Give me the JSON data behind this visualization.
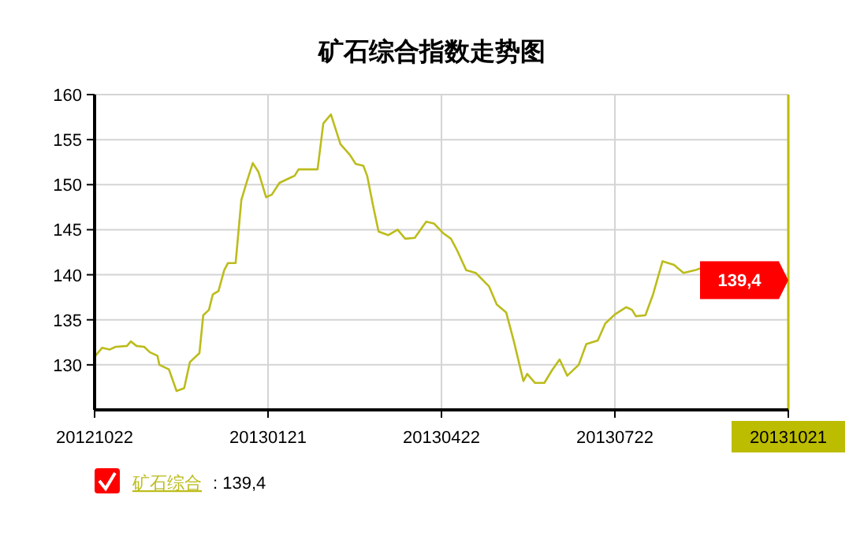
{
  "chart_data": {
    "type": "line",
    "title": "矿石综合指数走势图",
    "x": [
      "2012-10-22",
      "2012-10-26",
      "2012-10-30",
      "2012-11-02",
      "2012-11-08",
      "2012-11-10",
      "2012-11-13",
      "2012-11-17",
      "2012-11-20",
      "2012-11-24",
      "2012-11-25",
      "2012-11-30",
      "2012-12-04",
      "2012-12-08",
      "2012-12-11",
      "2012-12-16",
      "2012-12-18",
      "2012-12-21",
      "2012-12-23",
      "2012-12-26",
      "2012-12-29",
      "2012-12-31",
      "2013-01-04",
      "2013-01-07",
      "2013-01-10",
      "2013-01-13",
      "2013-01-16",
      "2013-01-20",
      "2013-01-23",
      "2013-01-27",
      "2013-02-01",
      "2013-02-04",
      "2013-02-06",
      "2013-02-16",
      "2013-02-19",
      "2013-02-23",
      "2013-02-28",
      "2013-03-05",
      "2013-03-08",
      "2013-03-12",
      "2013-03-14",
      "2013-03-17",
      "2013-03-20",
      "2013-03-25",
      "2013-03-30",
      "2013-04-03",
      "2013-04-08",
      "2013-04-14",
      "2013-04-18",
      "2013-04-23",
      "2013-04-27",
      "2013-04-30",
      "2013-05-05",
      "2013-05-10",
      "2013-05-17",
      "2013-05-21",
      "2013-05-26",
      "2013-05-30",
      "2013-06-04",
      "2013-06-06",
      "2013-06-10",
      "2013-06-15",
      "2013-06-19",
      "2013-06-23",
      "2013-06-27",
      "2013-07-03",
      "2013-07-07",
      "2013-07-13",
      "2013-07-17",
      "2013-07-22",
      "2013-07-28",
      "2013-07-31",
      "2013-08-02",
      "2013-08-07",
      "2013-08-11",
      "2013-08-16",
      "2013-08-22",
      "2013-08-27",
      "2013-09-02",
      "2013-09-06"
    ],
    "series": [
      {
        "name": "矿石综合",
        "color": "#bcbc1c",
        "values": [
          130.9,
          131.9,
          131.7,
          132.0,
          132.1,
          132.6,
          132.1,
          132.0,
          131.4,
          131.0,
          130.0,
          129.5,
          127.1,
          127.4,
          130.3,
          131.3,
          135.5,
          136.1,
          137.8,
          138.2,
          140.5,
          141.3,
          141.3,
          148.3,
          150.4,
          152.4,
          151.4,
          148.6,
          148.9,
          150.2,
          150.7,
          151.0,
          151.7,
          151.7,
          156.8,
          157.8,
          154.5,
          153.3,
          152.3,
          152.1,
          151.0,
          147.8,
          144.8,
          144.4,
          145.0,
          144.0,
          144.1,
          145.9,
          145.7,
          144.6,
          144.0,
          142.8,
          140.5,
          140.2,
          138.7,
          136.7,
          135.8,
          132.6,
          128.2,
          129.0,
          128.0,
          128.0,
          129.4,
          130.6,
          128.8,
          130.0,
          132.3,
          132.7,
          134.6,
          135.6,
          136.4,
          136.1,
          135.4,
          135.5,
          137.8,
          141.5,
          141.1,
          140.2,
          140.5,
          140.8
        ]
      }
    ],
    "xlim": [
      "2012-10-22",
      "2013-10-21"
    ],
    "xticks": [
      {
        "value": "2012-10-22",
        "label": "20121022"
      },
      {
        "value": "2013-01-21",
        "label": "20130121"
      },
      {
        "value": "2013-04-22",
        "label": "20130422"
      },
      {
        "value": "2013-07-22",
        "label": "20130722"
      },
      {
        "value": "2013-10-21",
        "label": "20131021"
      }
    ],
    "ylim": [
      125,
      160
    ],
    "yticks": [
      130,
      135,
      140,
      145,
      150,
      155,
      160
    ],
    "grid": true,
    "legend": "bottom left",
    "marker": "none",
    "line_style": "solid",
    "ref_lines": [
      {
        "axis": "x",
        "value": "2013-10-21",
        "color": "#bcbc00"
      }
    ],
    "annotations": [
      {
        "text": "139,4",
        "x": "2013-10-21",
        "y": 139.4
      },
      ": 139,4"
    ]
  }
}
